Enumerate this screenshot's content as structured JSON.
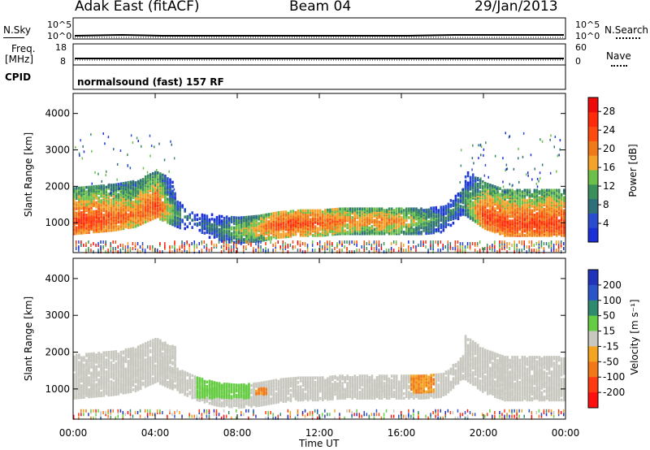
{
  "header": {
    "station": "Adak East (fitACF)",
    "beam": "Beam 04",
    "date": "29/Jan/2013"
  },
  "panel_labels": {
    "nsky": "N.Sky",
    "nsearch": "N.Search",
    "freq_line1": "Freq.",
    "freq_line2": "[MHz]",
    "nave": "Nave",
    "cpid": "CPID",
    "cpid_value": "normalsound (fast) 157 RF"
  },
  "noise_ticks": {
    "left_top": "10^5",
    "left_bottom": "10^0",
    "right_top": "10^5",
    "right_bottom": "10^0"
  },
  "freq_ticks": {
    "left_top": "18",
    "left_bottom": "8",
    "right_top": "60",
    "right_bottom": "0"
  },
  "colors": {
    "power_scale": [
      "#1a2fd8",
      "#2a4dd0",
      "#2f6f7a",
      "#3b8f5a",
      "#6cc04a",
      "#f5a22a",
      "#f07a1a",
      "#ff4a10",
      "#ff2a0a",
      "#ee0a0a"
    ],
    "velocity_scale": [
      "#2233bb",
      "#2a55c8",
      "#2f8a6e",
      "#66cc44",
      "#c8c8c0",
      "#f4a420",
      "#f07818",
      "#ff3a10",
      "#ff1010"
    ],
    "ground_scatter": "#c8c8c0"
  },
  "chart_data": [
    {
      "type": "heatmap",
      "title": "Power",
      "ylabel": "Slant Range [km]",
      "ylim": [
        180,
        4550
      ],
      "yticks": [
        "1000",
        "2000",
        "3000",
        "4000"
      ],
      "xlabel": "Time UT",
      "xticks": [
        "00:00",
        "04:00",
        "08:00",
        "12:00",
        "16:00",
        "20:00",
        "00:00"
      ],
      "colorbar": {
        "label": "Power [dB]",
        "ticks": [
          "4",
          "8",
          "12",
          "16",
          "20",
          "24",
          "28"
        ],
        "range": [
          0,
          31
        ]
      },
      "band_profile": {
        "time_h": [
          0,
          1,
          2,
          3,
          4,
          5,
          6,
          7,
          8,
          9,
          10,
          11,
          12,
          13,
          14,
          15,
          16,
          17,
          18,
          19,
          20,
          21,
          22,
          23,
          24
        ],
        "range_km": [
          1050,
          1100,
          1150,
          1250,
          1500,
          1250,
          1000,
          850,
          800,
          850,
          950,
          1000,
          1000,
          1050,
          1050,
          1050,
          1050,
          1050,
          1100,
          1600,
          1200,
          1000,
          1000,
          1000,
          1000
        ],
        "power_db": [
          28,
          28,
          26,
          24,
          28,
          14,
          10,
          12,
          18,
          22,
          28,
          28,
          26,
          24,
          22,
          24,
          22,
          18,
          12,
          14,
          28,
          28,
          28,
          28,
          28
        ]
      }
    },
    {
      "type": "heatmap",
      "title": "Velocity",
      "ylabel": "Slant Range [km]",
      "ylim": [
        180,
        4550
      ],
      "yticks": [
        "1000",
        "2000",
        "3000",
        "4000"
      ],
      "xlabel": "Time UT",
      "xticks": [
        "00:00",
        "04:00",
        "08:00",
        "12:00",
        "16:00",
        "20:00",
        "00:00"
      ],
      "colorbar": {
        "label": "Velocity [m s⁻¹]",
        "ticks": [
          "200",
          "100",
          "50",
          "15",
          "-15",
          "-50",
          "-100",
          "-200"
        ],
        "range": [
          -250,
          250
        ]
      },
      "velocity_features": [
        {
          "time_h": [
            6.0,
            8.6
          ],
          "range_km": [
            750,
            1300
          ],
          "velocity": 40
        },
        {
          "time_h": [
            8.8,
            9.4
          ],
          "range_km": [
            850,
            1050
          ],
          "velocity": -50
        },
        {
          "time_h": [
            16.4,
            17.6
          ],
          "range_km": [
            900,
            1450
          ],
          "velocity": -50
        },
        {
          "time_h": [
            10.0,
            15.5
          ],
          "range_km": [
            900,
            1300
          ],
          "velocity": 0
        }
      ]
    }
  ]
}
